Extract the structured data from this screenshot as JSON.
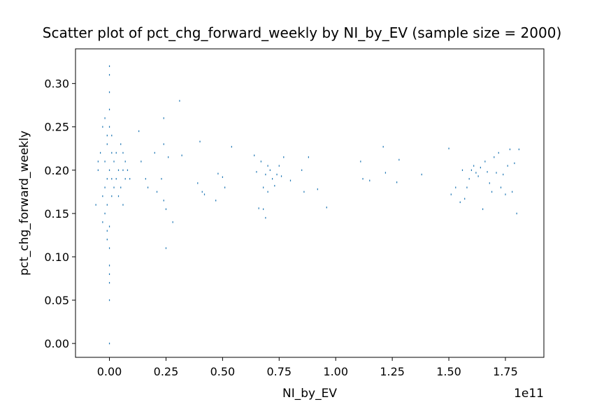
{
  "colors": {
    "marker": "#1f77b4",
    "axis": "#000000",
    "background": "#ffffff"
  },
  "chart_data": {
    "type": "scatter",
    "title": "Scatter plot of pct_chg_forward_weekly by NI_by_EV (sample size = 2000)",
    "xlabel": "NI_by_EV",
    "ylabel": "pct_chg_forward_weekly",
    "x_offset_label": "1e11",
    "x_scale": 100000000000,
    "xlim": [
      -0.15,
      1.92
    ],
    "ylim": [
      -0.016,
      0.34
    ],
    "xticks": [
      0.0,
      0.25,
      0.5,
      0.75,
      1.0,
      1.25,
      1.5,
      1.75
    ],
    "xtick_labels": [
      "0.00",
      "0.25",
      "0.50",
      "0.75",
      "1.00",
      "1.25",
      "1.50",
      "1.75"
    ],
    "yticks": [
      0.0,
      0.05,
      0.1,
      0.15,
      0.2,
      0.25,
      0.3
    ],
    "ytick_labels": [
      "0.00",
      "0.05",
      "0.10",
      "0.15",
      "0.20",
      "0.25",
      "0.30"
    ],
    "grid": false,
    "series": [
      {
        "name": "pct_chg_forward_weekly",
        "x": [
          -0.05,
          -0.04,
          -0.03,
          -0.03,
          -0.02,
          -0.02,
          -0.02,
          -0.01,
          -0.01,
          -0.01,
          -0.01,
          0.0,
          0.0,
          0.0,
          0.0,
          0.01,
          0.01,
          0.01,
          0.01,
          0.02,
          0.02,
          0.03,
          0.03,
          0.04,
          0.04,
          0.05,
          0.05,
          0.06,
          0.06,
          0.06,
          0.07,
          0.07,
          0.08,
          0.09,
          0.0,
          0.0,
          0.0,
          0.0,
          0.0,
          0.0,
          0.0,
          0.0,
          0.0,
          -0.01,
          -0.01,
          -0.02,
          -0.03,
          -0.05,
          -0.06,
          0.13,
          0.14,
          0.16,
          0.17,
          0.2,
          0.21,
          0.23,
          0.24,
          0.24,
          0.24,
          0.25,
          0.25,
          0.26,
          0.28,
          0.31,
          0.32,
          0.39,
          0.4,
          0.41,
          0.42,
          0.47,
          0.48,
          0.5,
          0.51,
          0.54,
          0.64,
          0.65,
          0.66,
          0.67,
          0.68,
          0.68,
          0.69,
          0.69,
          0.7,
          0.7,
          0.71,
          0.72,
          0.73,
          0.74,
          0.75,
          0.76,
          0.77,
          0.8,
          0.85,
          0.86,
          0.88,
          0.92,
          0.96,
          1.11,
          1.12,
          1.15,
          1.21,
          1.22,
          1.27,
          1.28,
          1.38,
          1.5,
          1.51,
          1.53,
          1.55,
          1.56,
          1.57,
          1.58,
          1.59,
          1.6,
          1.61,
          1.62,
          1.63,
          1.64,
          1.65,
          1.66,
          1.67,
          1.68,
          1.69,
          1.7,
          1.71,
          1.72,
          1.73,
          1.74,
          1.75,
          1.76,
          1.77,
          1.78,
          1.79,
          1.8,
          1.81
        ],
        "y": [
          0.2,
          0.22,
          0.17,
          0.14,
          0.26,
          0.21,
          0.15,
          0.23,
          0.19,
          0.16,
          0.12,
          0.32,
          0.29,
          0.25,
          0.2,
          0.24,
          0.22,
          0.19,
          0.17,
          0.21,
          0.18,
          0.22,
          0.19,
          0.2,
          0.17,
          0.23,
          0.18,
          0.22,
          0.2,
          0.16,
          0.21,
          0.19,
          0.2,
          0.19,
          0.11,
          0.09,
          0.08,
          0.07,
          0.05,
          0.0,
          0.135,
          0.31,
          0.27,
          0.24,
          0.13,
          0.18,
          0.25,
          0.21,
          0.16,
          0.245,
          0.21,
          0.19,
          0.18,
          0.22,
          0.175,
          0.19,
          0.165,
          0.26,
          0.23,
          0.155,
          0.11,
          0.215,
          0.14,
          0.28,
          0.217,
          0.185,
          0.233,
          0.175,
          0.172,
          0.165,
          0.196,
          0.192,
          0.18,
          0.227,
          0.217,
          0.198,
          0.156,
          0.21,
          0.18,
          0.155,
          0.195,
          0.145,
          0.205,
          0.175,
          0.2,
          0.19,
          0.182,
          0.195,
          0.205,
          0.193,
          0.215,
          0.188,
          0.2,
          0.175,
          0.215,
          0.178,
          0.157,
          0.21,
          0.19,
          0.188,
          0.227,
          0.197,
          0.186,
          0.212,
          0.195,
          0.225,
          0.172,
          0.18,
          0.163,
          0.2,
          0.167,
          0.18,
          0.19,
          0.2,
          0.205,
          0.197,
          0.193,
          0.203,
          0.155,
          0.21,
          0.198,
          0.185,
          0.175,
          0.215,
          0.197,
          0.22,
          0.18,
          0.195,
          0.172,
          0.205,
          0.224,
          0.175,
          0.208,
          0.15,
          0.224
        ]
      }
    ]
  }
}
